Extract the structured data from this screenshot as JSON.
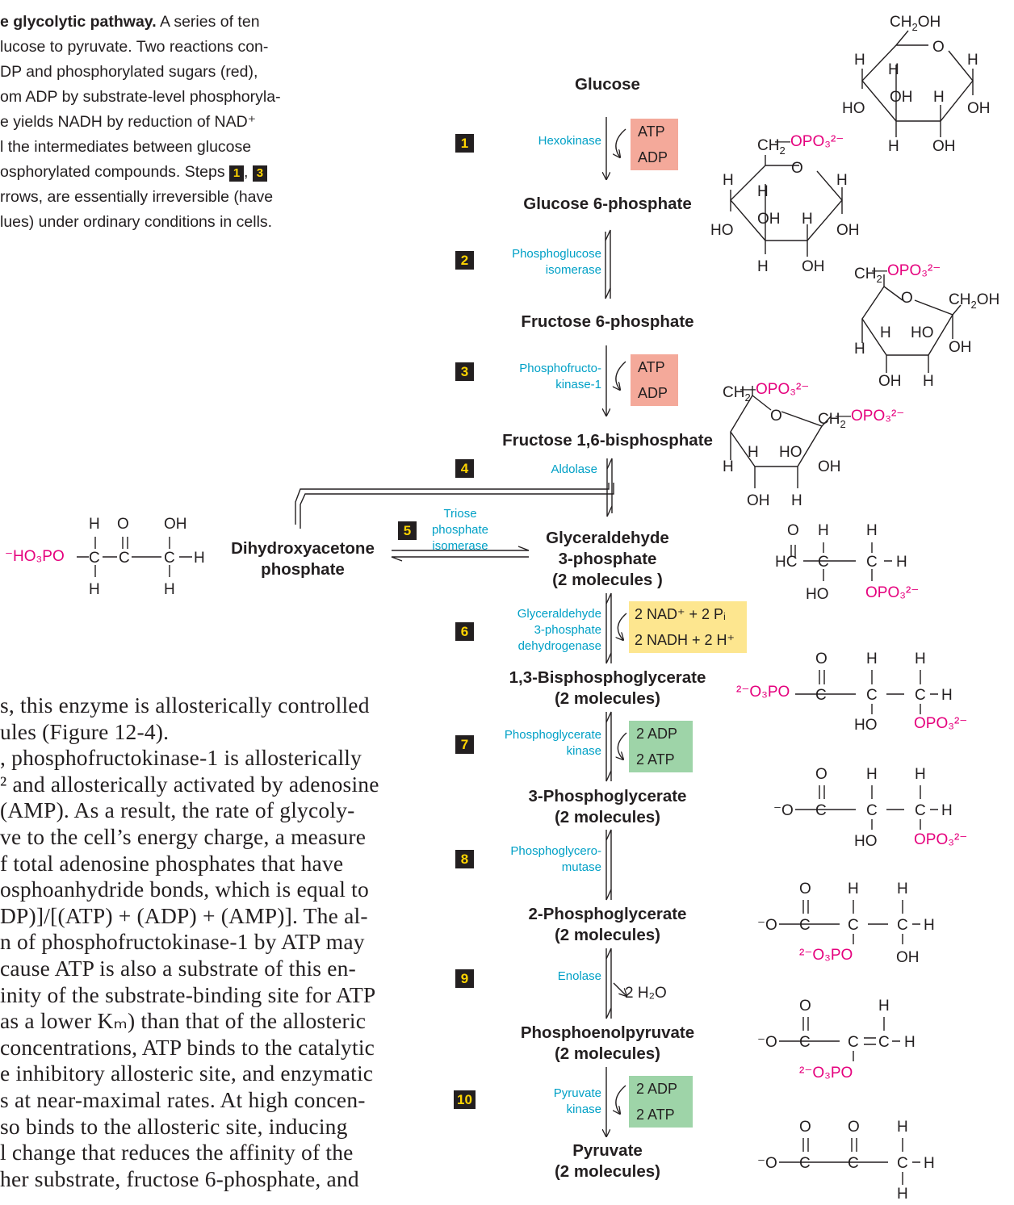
{
  "caption": {
    "title_fragment": "e glycolytic pathway.",
    "lines": [
      " A series of ten",
      "lucose to pyruvate. Two reactions con-",
      "DP and phosphorylated sugars (red),",
      "om ADP by substrate-level phosphoryla-",
      "e yields NADH by reduction of NAD⁺",
      "l the intermediates between glucose",
      "osphorylated compounds. Steps ",
      "rrows, are essentially irreversible (have",
      "lues) under ordinary conditions in cells."
    ],
    "step_refs": [
      "1",
      "3"
    ]
  },
  "body_text": [
    "s, this enzyme is allosterically controlled",
    "ules (Figure 12-4).",
    ", phosphofructokinase-1 is allosterically",
    "² and allosterically activated by adenosine",
    "(AMP). As a result, the rate of glycoly-",
    "ve to the cell’s energy charge, a measure",
    "f total adenosine phosphates that have",
    "osphoanhydride bonds, which is equal to",
    "DP)]/[(ATP) + (ADP) + (AMP)]. The al-",
    "n of phosphofructokinase-1 by ATP may",
    "cause ATP is also a substrate of this en-",
    "inity of the substrate-binding site for ATP",
    "as a lower Kₘ) than that of the allosteric",
    "concentrations, ATP binds to the catalytic",
    "e inhibitory allosteric site, and enzymatic",
    "s at near-maximal rates. At high concen-",
    "so binds to the allosteric site, inducing",
    "l change that reduces the affinity of the",
    "her substrate, fructose 6-phosphate, and"
  ],
  "metabolites": {
    "glucose": "Glucose",
    "g6p": "Glucose 6-phosphate",
    "f6p": "Fructose 6-phosphate",
    "f16bp": "Fructose 1,6-bisphosphate",
    "gap": [
      "Glyceraldehyde",
      "3-phosphate",
      "(2 molecules )"
    ],
    "dhap": [
      "Dihydroxyacetone",
      "phosphate"
    ],
    "bpg": [
      "1,3-Bisphosphoglycerate",
      "(2 molecules)"
    ],
    "pg3": [
      "3-Phosphoglycerate",
      "(2 molecules)"
    ],
    "pg2": [
      "2-Phosphoglycerate",
      "(2 molecules)"
    ],
    "pep": [
      "Phosphoenolpyruvate",
      "(2 molecules)"
    ],
    "pyr": [
      "Pyruvate",
      "(2 molecules)"
    ]
  },
  "steps": [
    {
      "num": "1",
      "enzyme": [
        "Hexokinase"
      ],
      "cofactors": [
        "ATP",
        "ADP"
      ],
      "color": "#f4a99a"
    },
    {
      "num": "2",
      "enzyme": [
        "Phosphoglucose",
        "isomerase"
      ]
    },
    {
      "num": "3",
      "enzyme": [
        "Phosphofructo-",
        "kinase-1"
      ],
      "cofactors": [
        "ATP",
        "ADP"
      ],
      "color": "#f4a99a"
    },
    {
      "num": "4",
      "enzyme": [
        "Aldolase"
      ]
    },
    {
      "num": "5",
      "enzyme": [
        "Triose",
        "phosphate",
        "isomerase"
      ]
    },
    {
      "num": "6",
      "enzyme": [
        "Glyceraldehyde",
        "3-phosphate",
        "dehydrogenase"
      ],
      "cofactors": [
        "2 NAD⁺ + 2 Pᵢ",
        "2 NADH + 2 H⁺"
      ],
      "color": "#fde68f"
    },
    {
      "num": "7",
      "enzyme": [
        "Phosphoglycerate",
        "kinase"
      ],
      "cofactors": [
        "2 ADP",
        "2 ATP"
      ],
      "color": "#9ed4a8"
    },
    {
      "num": "8",
      "enzyme": [
        "Phosphoglycero-",
        "mutase"
      ]
    },
    {
      "num": "9",
      "enzyme": [
        "Enolase"
      ],
      "cofactors": [
        "2 H₂O"
      ]
    },
    {
      "num": "10",
      "enzyme": [
        "Pyruvate",
        "kinase"
      ],
      "cofactors": [
        "2 ADP",
        "2 ATP"
      ],
      "color": "#9ed4a8"
    }
  ],
  "structure_labels": {
    "phosphate_group": "OPO₃²⁻",
    "ch2": "CH₂",
    "ch2oh": "CH₂OH",
    "dhap_phosphate": "⁻HO₃PO",
    "carboxylate": "⁻O",
    "ester_phosphate": "²⁻O₃PO"
  },
  "colors": {
    "enzyme_text": "#00a0c6",
    "phosphate_text": "#e5007d",
    "step_box": "#231f20",
    "step_number": "#ffd400",
    "atp_consuming": "#f4a99a",
    "atp_producing": "#9ed4a8",
    "nad": "#fde68f"
  }
}
